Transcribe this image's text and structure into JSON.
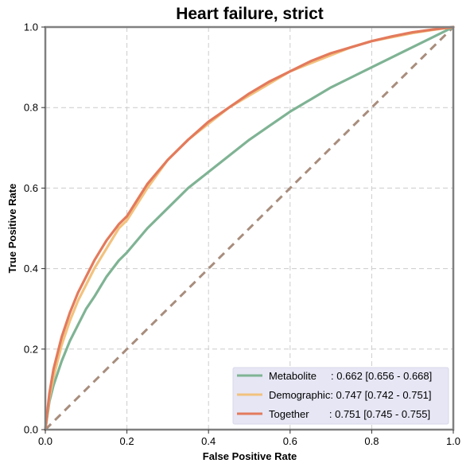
{
  "chart_data": {
    "type": "line",
    "title": "Heart failure, strict",
    "xlabel": "False Positive Rate",
    "ylabel": "True Positive Rate",
    "xlim": [
      0,
      1
    ],
    "ylim": [
      0,
      1
    ],
    "xticks": [
      "0.0",
      "0.2",
      "0.4",
      "0.6",
      "0.8",
      "1.0"
    ],
    "yticks": [
      "0.0",
      "0.2",
      "0.4",
      "0.6",
      "0.8",
      "1.0"
    ],
    "grid": true,
    "legend_position": "bottom-right",
    "series": [
      {
        "name": "Metabolite",
        "legend_label": "Metabolite     : 0.662 [0.656 - 0.668]",
        "color": "#7fb394",
        "x": [
          0,
          0.01,
          0.02,
          0.04,
          0.06,
          0.08,
          0.1,
          0.12,
          0.15,
          0.18,
          0.2,
          0.25,
          0.3,
          0.35,
          0.4,
          0.45,
          0.5,
          0.55,
          0.6,
          0.65,
          0.7,
          0.75,
          0.8,
          0.85,
          0.9,
          0.95,
          1.0
        ],
        "y": [
          0,
          0.07,
          0.11,
          0.17,
          0.22,
          0.26,
          0.3,
          0.33,
          0.38,
          0.42,
          0.44,
          0.5,
          0.55,
          0.6,
          0.64,
          0.68,
          0.72,
          0.755,
          0.79,
          0.82,
          0.85,
          0.875,
          0.9,
          0.925,
          0.95,
          0.975,
          1.0
        ]
      },
      {
        "name": "Demographic",
        "legend_label": "Demographic: 0.747 [0.742 - 0.751]",
        "color": "#f2c27e",
        "x": [
          0,
          0.01,
          0.02,
          0.04,
          0.06,
          0.08,
          0.1,
          0.12,
          0.15,
          0.18,
          0.2,
          0.25,
          0.3,
          0.35,
          0.4,
          0.45,
          0.5,
          0.55,
          0.6,
          0.65,
          0.7,
          0.75,
          0.8,
          0.85,
          0.9,
          0.95,
          1.0
        ],
        "y": [
          0,
          0.08,
          0.13,
          0.21,
          0.27,
          0.32,
          0.36,
          0.4,
          0.45,
          0.5,
          0.52,
          0.6,
          0.67,
          0.72,
          0.76,
          0.8,
          0.83,
          0.86,
          0.89,
          0.91,
          0.93,
          0.95,
          0.965,
          0.975,
          0.985,
          0.993,
          1.0
        ]
      },
      {
        "name": "Together",
        "legend_label": "Together       : 0.751 [0.745 - 0.755]",
        "color": "#e37a5c",
        "x": [
          0,
          0.01,
          0.02,
          0.04,
          0.06,
          0.08,
          0.1,
          0.12,
          0.15,
          0.18,
          0.2,
          0.25,
          0.3,
          0.35,
          0.4,
          0.45,
          0.5,
          0.55,
          0.6,
          0.65,
          0.7,
          0.75,
          0.8,
          0.85,
          0.9,
          0.95,
          1.0
        ],
        "y": [
          0,
          0.09,
          0.15,
          0.23,
          0.29,
          0.34,
          0.38,
          0.42,
          0.47,
          0.51,
          0.53,
          0.61,
          0.67,
          0.72,
          0.765,
          0.8,
          0.835,
          0.865,
          0.89,
          0.915,
          0.935,
          0.95,
          0.965,
          0.977,
          0.987,
          0.994,
          1.0
        ]
      }
    ],
    "reference_line": {
      "color": "#a88d7d",
      "x": [
        0,
        1
      ],
      "y": [
        0,
        1
      ]
    }
  }
}
